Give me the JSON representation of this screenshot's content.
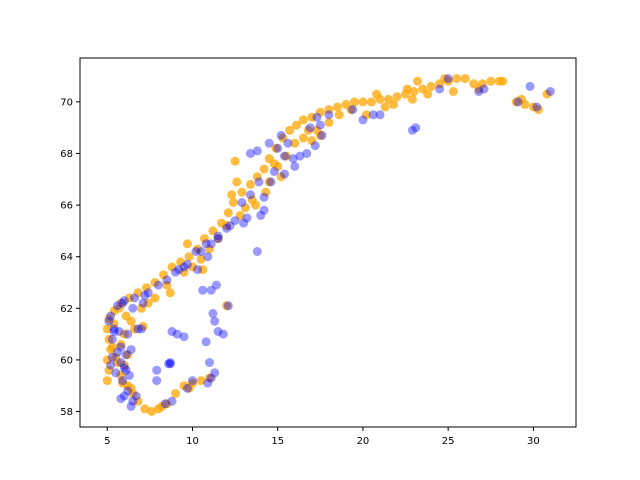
{
  "chart_data": {
    "type": "scatter",
    "title": "",
    "xlabel": "",
    "ylabel": "",
    "xlim": [
      3.4,
      32.5
    ],
    "ylim": [
      57.4,
      71.7
    ],
    "xticks": [
      5,
      10,
      15,
      20,
      25,
      30
    ],
    "yticks": [
      58,
      60,
      62,
      64,
      66,
      68,
      70
    ],
    "grid": false,
    "legend": "none",
    "series": [
      {
        "color": "#ffa500",
        "alpha": 0.75,
        "points": [
          [
            5.0,
            59.2
          ],
          [
            5.1,
            59.6
          ],
          [
            5.0,
            60.0
          ],
          [
            5.2,
            60.4
          ],
          [
            5.1,
            60.8
          ],
          [
            5.0,
            61.2
          ],
          [
            5.1,
            61.6
          ],
          [
            5.4,
            61.9
          ],
          [
            5.8,
            62.2
          ],
          [
            6.3,
            62.4
          ],
          [
            6.8,
            62.6
          ],
          [
            7.3,
            62.8
          ],
          [
            7.8,
            63.0
          ],
          [
            8.3,
            63.3
          ],
          [
            8.8,
            63.6
          ],
          [
            9.3,
            63.8
          ],
          [
            9.8,
            64.0
          ],
          [
            10.3,
            64.3
          ],
          [
            10.7,
            64.7
          ],
          [
            11.2,
            65.0
          ],
          [
            11.7,
            65.3
          ],
          [
            12.1,
            65.7
          ],
          [
            12.4,
            66.1
          ],
          [
            12.9,
            66.5
          ],
          [
            13.4,
            66.8
          ],
          [
            13.8,
            67.1
          ],
          [
            14.2,
            67.4
          ],
          [
            14.5,
            67.8
          ],
          [
            14.9,
            68.2
          ],
          [
            15.3,
            68.6
          ],
          [
            15.7,
            68.9
          ],
          [
            16.1,
            69.1
          ],
          [
            16.5,
            69.3
          ],
          [
            17.0,
            69.4
          ],
          [
            17.5,
            69.6
          ],
          [
            18.0,
            69.7
          ],
          [
            18.5,
            69.8
          ],
          [
            19.0,
            69.9
          ],
          [
            19.5,
            70.0
          ],
          [
            20.0,
            70.0
          ],
          [
            20.5,
            70.0
          ],
          [
            21.0,
            70.1
          ],
          [
            21.5,
            70.1
          ],
          [
            22.0,
            70.2
          ],
          [
            22.5,
            70.3
          ],
          [
            23.0,
            70.4
          ],
          [
            23.5,
            70.5
          ],
          [
            24.0,
            70.6
          ],
          [
            24.5,
            70.7
          ],
          [
            25.0,
            70.8
          ],
          [
            25.5,
            70.9
          ],
          [
            26.0,
            70.9
          ],
          [
            26.5,
            70.7
          ],
          [
            27.0,
            70.7
          ],
          [
            27.5,
            70.8
          ],
          [
            28.0,
            70.8
          ],
          [
            29.0,
            70.0
          ],
          [
            29.5,
            69.9
          ],
          [
            30.0,
            69.8
          ],
          [
            30.3,
            69.7
          ],
          [
            16.0,
            68.4
          ],
          [
            16.5,
            68.6
          ],
          [
            17.0,
            68.5
          ],
          [
            17.5,
            68.7
          ],
          [
            18.0,
            69.2
          ],
          [
            15.5,
            67.9
          ],
          [
            15.0,
            67.5
          ],
          [
            14.5,
            66.9
          ],
          [
            13.5,
            66.2
          ],
          [
            12.8,
            65.6
          ],
          [
            12.0,
            65.2
          ],
          [
            11.5,
            64.7
          ],
          [
            10.5,
            63.9
          ],
          [
            9.5,
            63.4
          ],
          [
            8.5,
            62.9
          ],
          [
            7.8,
            62.4
          ],
          [
            7.0,
            62.0
          ],
          [
            6.4,
            61.5
          ],
          [
            6.0,
            61.0
          ],
          [
            5.8,
            60.6
          ],
          [
            6.2,
            60.2
          ],
          [
            6.0,
            59.8
          ],
          [
            5.8,
            59.4
          ],
          [
            6.2,
            59.0
          ],
          [
            6.5,
            58.7
          ],
          [
            6.8,
            58.4
          ],
          [
            7.2,
            58.1
          ],
          [
            8.0,
            58.1
          ],
          [
            8.5,
            58.3
          ],
          [
            9.0,
            58.7
          ],
          [
            9.5,
            59.0
          ],
          [
            10.0,
            59.1
          ],
          [
            10.5,
            59.2
          ],
          [
            11.0,
            59.3
          ],
          [
            5.5,
            60.1
          ],
          [
            5.3,
            60.5
          ],
          [
            6.6,
            61.2
          ],
          [
            7.1,
            61.3
          ],
          [
            12.3,
            66.4
          ],
          [
            14.8,
            67.6
          ],
          [
            16.8,
            68.9
          ],
          [
            19.3,
            69.7
          ],
          [
            21.8,
            69.9
          ],
          [
            23.8,
            70.3
          ],
          [
            25.3,
            70.4
          ],
          [
            26.8,
            70.5
          ],
          [
            24.8,
            70.9
          ],
          [
            22.6,
            70.5
          ],
          [
            20.8,
            70.3
          ],
          [
            23.2,
            70.8
          ],
          [
            12.5,
            67.7
          ],
          [
            12.6,
            66.9
          ],
          [
            13.1,
            65.9
          ],
          [
            11.0,
            64.3
          ],
          [
            10.6,
            63.5
          ],
          [
            8.7,
            62.6
          ],
          [
            7.4,
            62.2
          ],
          [
            12.0,
            62.1
          ],
          [
            9.7,
            64.5
          ],
          [
            10.0,
            63.6
          ],
          [
            5.7,
            62.0
          ],
          [
            6.1,
            61.7
          ],
          [
            5.4,
            61.4
          ],
          [
            5.6,
            59.9
          ],
          [
            5.9,
            59.1
          ],
          [
            6.4,
            58.9
          ],
          [
            7.6,
            58.0
          ],
          [
            8.2,
            58.2
          ],
          [
            9.8,
            58.9
          ],
          [
            28.2,
            70.8
          ],
          [
            30.8,
            70.3
          ],
          [
            29.3,
            70.1
          ],
          [
            13.7,
            66.0
          ],
          [
            14.3,
            66.5
          ],
          [
            15.2,
            67.1
          ],
          [
            17.3,
            68.9
          ],
          [
            18.6,
            69.5
          ],
          [
            20.2,
            69.5
          ],
          [
            21.3,
            69.8
          ],
          [
            22.9,
            70.1
          ]
        ]
      },
      {
        "color": "#0000ff",
        "alpha": 0.4,
        "points": [
          [
            5.1,
            61.5
          ],
          [
            5.4,
            61.2
          ],
          [
            5.3,
            60.8
          ],
          [
            5.6,
            60.3
          ],
          [
            5.8,
            59.9
          ],
          [
            5.5,
            59.5
          ],
          [
            5.9,
            59.2
          ],
          [
            6.2,
            58.8
          ],
          [
            6.5,
            58.4
          ],
          [
            6.0,
            58.6
          ],
          [
            5.2,
            61.7
          ],
          [
            5.6,
            62.1
          ],
          [
            6.0,
            62.3
          ],
          [
            6.5,
            62.0
          ],
          [
            7.1,
            62.2
          ],
          [
            7.4,
            62.6
          ],
          [
            8.0,
            62.9
          ],
          [
            8.5,
            63.1
          ],
          [
            9.0,
            63.4
          ],
          [
            9.5,
            63.6
          ],
          [
            10.2,
            64.2
          ],
          [
            10.8,
            64.5
          ],
          [
            11.5,
            64.7
          ],
          [
            12.0,
            65.1
          ],
          [
            12.5,
            65.4
          ],
          [
            13.0,
            65.3
          ],
          [
            13.4,
            66.4
          ],
          [
            13.9,
            66.9
          ],
          [
            14.6,
            66.9
          ],
          [
            14.0,
            65.6
          ],
          [
            14.2,
            65.8
          ],
          [
            13.8,
            64.2
          ],
          [
            15.0,
            68.2
          ],
          [
            15.4,
            67.9
          ],
          [
            15.9,
            67.8
          ],
          [
            16.3,
            67.9
          ],
          [
            16.7,
            68.0
          ],
          [
            17.2,
            68.3
          ],
          [
            17.6,
            68.7
          ],
          [
            17.3,
            69.4
          ],
          [
            18.0,
            69.5
          ],
          [
            15.2,
            68.7
          ],
          [
            15.6,
            68.4
          ],
          [
            16.0,
            67.5
          ],
          [
            14.8,
            67.3
          ],
          [
            15.4,
            67.2
          ],
          [
            13.4,
            68.0
          ],
          [
            13.8,
            68.1
          ],
          [
            14.5,
            68.4
          ],
          [
            12.9,
            66.1
          ],
          [
            20.0,
            69.3
          ],
          [
            20.6,
            69.5
          ],
          [
            19.4,
            69.7
          ],
          [
            22.9,
            68.9
          ],
          [
            23.1,
            69.0
          ],
          [
            26.8,
            70.4
          ],
          [
            27.1,
            70.5
          ],
          [
            29.8,
            70.6
          ],
          [
            29.1,
            70.0
          ],
          [
            30.2,
            69.8
          ],
          [
            31.0,
            70.4
          ],
          [
            24.5,
            70.5
          ],
          [
            25.0,
            70.9
          ],
          [
            11.3,
            61.5
          ],
          [
            11.2,
            61.8
          ],
          [
            11.1,
            62.7
          ],
          [
            11.4,
            62.9
          ],
          [
            10.9,
            64.0
          ],
          [
            10.5,
            64.2
          ],
          [
            11.1,
            64.5
          ],
          [
            12.1,
            62.1
          ],
          [
            11.5,
            61.1
          ],
          [
            11.8,
            61.0
          ],
          [
            10.8,
            60.7
          ],
          [
            11.0,
            59.9
          ],
          [
            11.3,
            59.5
          ],
          [
            11.1,
            59.3
          ],
          [
            10.9,
            59.1
          ],
          [
            10.0,
            59.2
          ],
          [
            9.7,
            58.9
          ],
          [
            8.8,
            58.4
          ],
          [
            8.4,
            58.3
          ],
          [
            7.9,
            59.2
          ],
          [
            7.9,
            59.6
          ],
          [
            8.7,
            59.9
          ],
          [
            8.6,
            59.85
          ],
          [
            8.7,
            59.85
          ],
          [
            8.8,
            61.1
          ],
          [
            9.1,
            61.0
          ],
          [
            9.5,
            60.9
          ],
          [
            7.0,
            61.2
          ],
          [
            6.8,
            61.2
          ],
          [
            6.4,
            60.4
          ],
          [
            6.1,
            60.2
          ],
          [
            6.0,
            59.7
          ],
          [
            6.3,
            59.4
          ],
          [
            6.7,
            58.6
          ],
          [
            6.4,
            58.2
          ],
          [
            5.8,
            58.5
          ],
          [
            14.2,
            66.3
          ],
          [
            11.5,
            64.8
          ],
          [
            12.2,
            65.2
          ],
          [
            13.2,
            65.5
          ],
          [
            10.3,
            63.5
          ],
          [
            10.6,
            62.7
          ],
          [
            9.7,
            63.7
          ],
          [
            9.2,
            63.5
          ],
          [
            7.2,
            62.5
          ],
          [
            6.6,
            62.4
          ],
          [
            5.9,
            62.2
          ],
          [
            5.4,
            61.1
          ],
          [
            5.7,
            61.1
          ],
          [
            6.2,
            61.0
          ],
          [
            5.3,
            60.1
          ],
          [
            5.8,
            60.5
          ],
          [
            6.1,
            59.6
          ],
          [
            5.2,
            59.8
          ],
          [
            21.0,
            69.5
          ],
          [
            16.9,
            69.0
          ],
          [
            17.5,
            69.1
          ]
        ]
      }
    ]
  }
}
